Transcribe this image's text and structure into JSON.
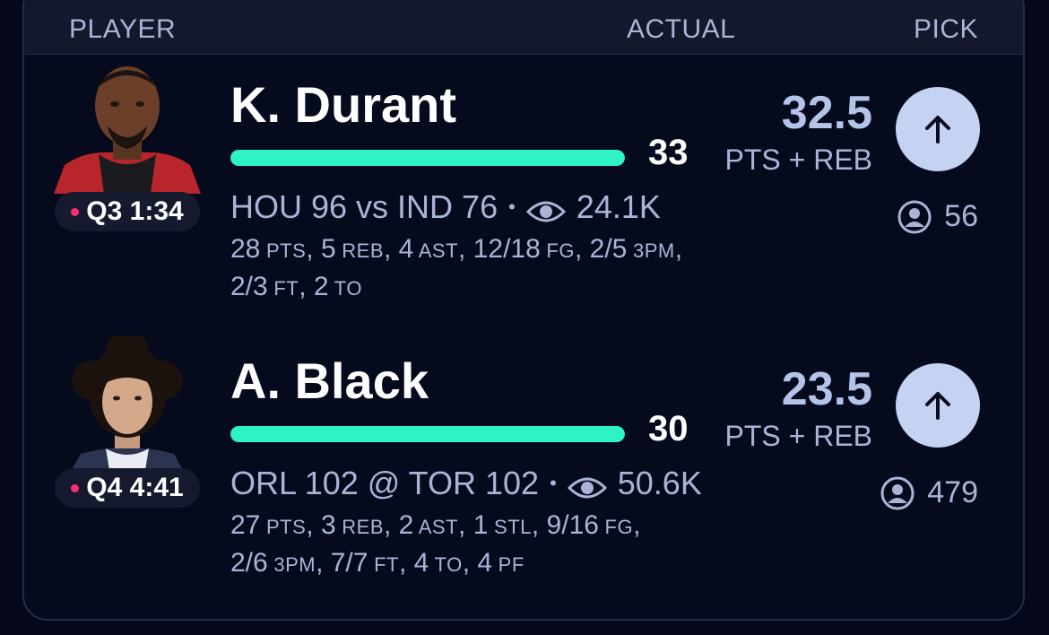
{
  "header": {
    "player_label": "PLAYER",
    "actual_label": "ACTUAL",
    "pick_label": "PICK"
  },
  "colors": {
    "background": "#05081a",
    "progress": "#2ff3c4",
    "pick_button": "#c3d3f1",
    "live_dot": "#ff2c6e",
    "muted_text": "#aab4d6"
  },
  "players": [
    {
      "name": "K. Durant",
      "clock": "Q3 1:34",
      "actual": "33",
      "progress_fraction": 1.0,
      "matchup": "HOU 96 vs IND 76",
      "separator": "•",
      "views": "24.1K",
      "stats_line1": [
        "28",
        "PTS",
        ", 5",
        "REB",
        ", 4",
        "AST",
        ", 12/18",
        "FG",
        ", 2/5",
        "3PM",
        ","
      ],
      "stats_line2": [
        "2/3",
        "FT",
        ", 2",
        "TO"
      ],
      "line_value": "32.5",
      "line_stat": "PTS + REB",
      "pick_icon": "arrow-up-icon",
      "pickers": "56"
    },
    {
      "name": "A. Black",
      "clock": "Q4 4:41",
      "actual": "30",
      "progress_fraction": 1.0,
      "matchup": "ORL 102 @ TOR 102",
      "separator": "•",
      "views": "50.6K",
      "stats_line1": [
        "27",
        "PTS",
        ", 3",
        "REB",
        ", 2",
        "AST",
        ", 1",
        "STL",
        ", 9/16",
        "FG",
        ","
      ],
      "stats_line2": [
        "2/6",
        "3PM",
        ", 7/7",
        "FT",
        ", 4",
        "TO",
        ", 4",
        "PF"
      ],
      "line_value": "23.5",
      "line_stat": "PTS + REB",
      "pick_icon": "arrow-up-icon",
      "pickers": "479"
    }
  ]
}
